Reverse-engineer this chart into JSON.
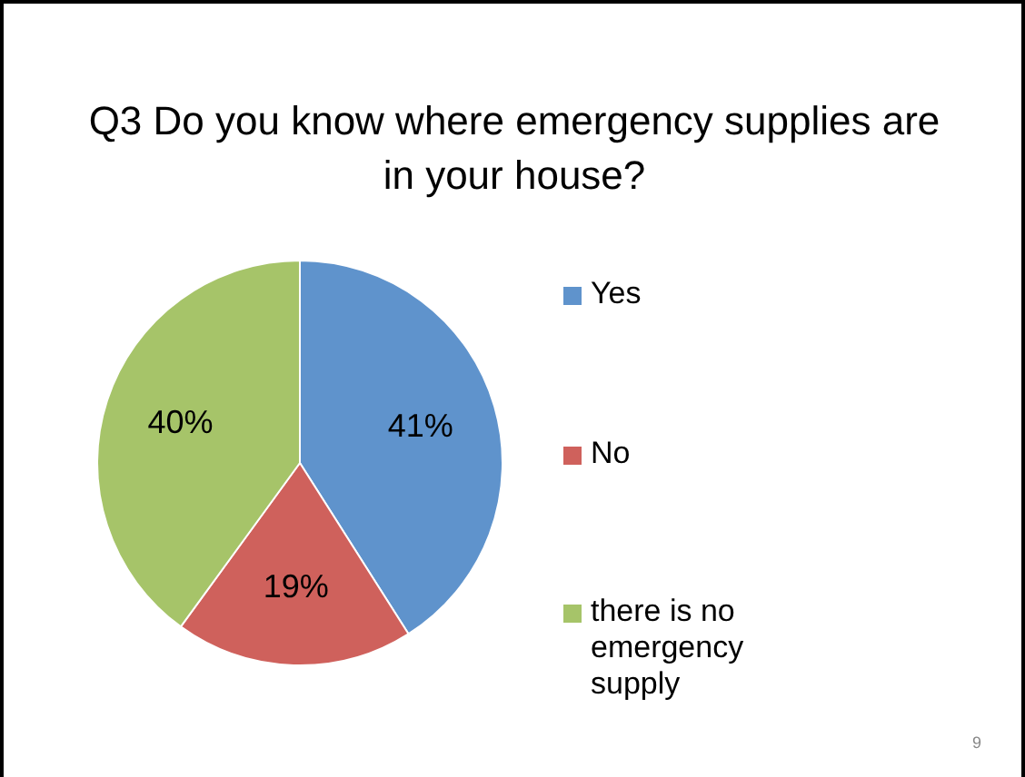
{
  "chart_data": {
    "type": "pie",
    "title": "Q3 Do you know where emergency supplies are in your house?",
    "categories": [
      "Yes",
      "No",
      "there is no emergency supply"
    ],
    "values": [
      41,
      19,
      40
    ],
    "colors": [
      "#5f93cc",
      "#cf615c",
      "#a6c469"
    ],
    "value_labels": [
      "41%",
      "19%",
      "40%"
    ],
    "legend": "right",
    "annotations": [
      "9"
    ]
  }
}
